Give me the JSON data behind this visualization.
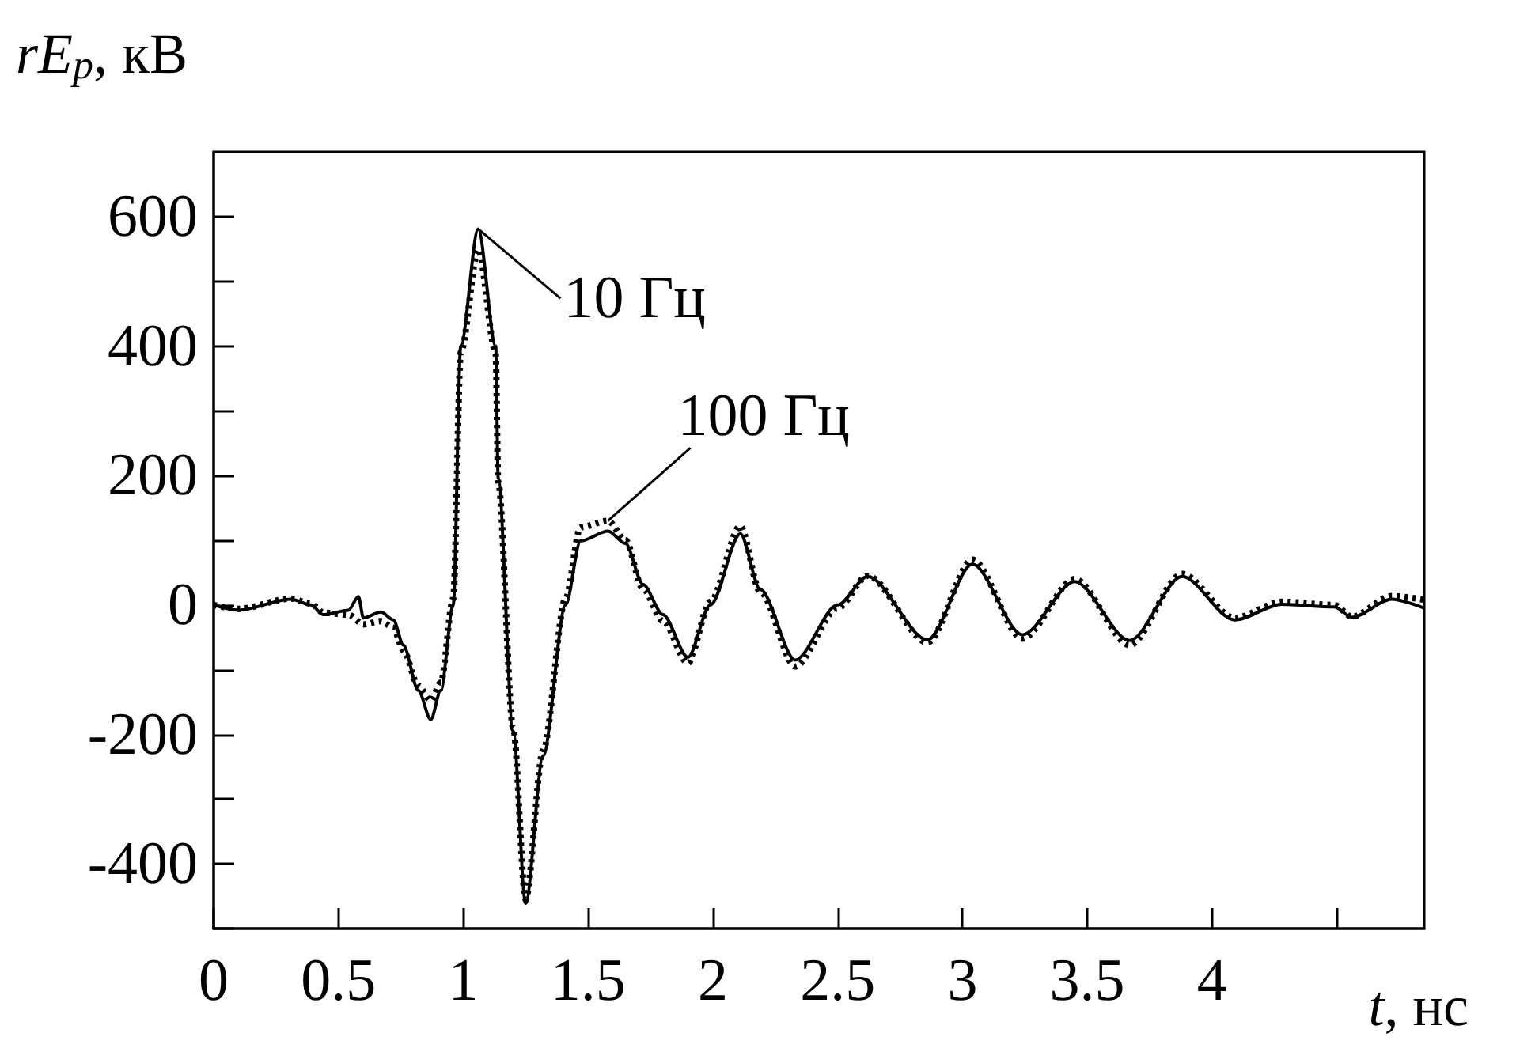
{
  "chart_data": {
    "type": "line",
    "xlabel": "t, нс",
    "ylabel": "rE$_{p}$, кВ",
    "xlim": [
      0,
      4.85
    ],
    "ylim": [
      -500,
      700
    ],
    "xticks": [
      0,
      0.5,
      1,
      1.5,
      2,
      2.5,
      3,
      3.5,
      4,
      {
        "value": 4.5,
        "label": null
      }
    ],
    "yticks": [
      {
        "value": -500,
        "label": null
      },
      -400,
      {
        "value": -300,
        "label": null
      },
      -200,
      {
        "value": -100,
        "label": null
      },
      0,
      {
        "value": 100,
        "label": null
      },
      200,
      {
        "value": 300,
        "label": null
      },
      400,
      {
        "value": 500,
        "label": null
      },
      600
    ],
    "grid": false,
    "marker": "none",
    "series": [
      {
        "color": "#000000",
        "line_style": "solid",
        "x": [
          0,
          0.1,
          0.31,
          0.39,
          0.44,
          0.54,
          0.58,
          0.6,
          0.67,
          0.72,
          0.76,
          0.82,
          0.87,
          0.91,
          0.96,
          0.99,
          1.06,
          1.13,
          1.14,
          1.2,
          1.25,
          1.32,
          1.41,
          1.47,
          1.58,
          1.65,
          1.72,
          1.8,
          1.9,
          1.99,
          2.11,
          2.19,
          2.33,
          2.5,
          2.62,
          2.86,
          3.04,
          3.24,
          3.45,
          3.67,
          3.88,
          4.09,
          4.28,
          4.49,
          4.56,
          4.72,
          4.85
        ],
        "values": [
          0,
          -8,
          9,
          0,
          -15,
          -8,
          13,
          -20,
          -11,
          -23,
          -62,
          -132,
          -177,
          -132,
          0,
          400,
          581,
          400,
          196,
          -195,
          -461,
          -233,
          0,
          99,
          114,
          95,
          32,
          -15,
          -81,
          0,
          110,
          24,
          -85,
          0,
          44,
          -54,
          63,
          -46,
          36,
          -55,
          44,
          -23,
          1,
          -3,
          -19,
          9,
          -5
        ]
      },
      {
        "color": "#000000",
        "line_style": "dotted",
        "x": [
          0,
          0.1,
          0.31,
          0.39,
          0.44,
          0.54,
          0.6,
          0.67,
          0.72,
          0.76,
          0.82,
          0.87,
          0.91,
          0.96,
          0.99,
          1.06,
          1.13,
          1.14,
          1.2,
          1.25,
          1.32,
          1.41,
          1.47,
          1.58,
          1.65,
          1.72,
          1.8,
          1.9,
          1.99,
          2.11,
          2.19,
          2.33,
          2.5,
          2.62,
          2.86,
          3.04,
          3.24,
          3.45,
          3.67,
          3.88,
          4.09,
          4.28,
          4.49,
          4.56,
          4.72,
          4.85
        ],
        "values": [
          0,
          -6,
          10,
          2,
          -12,
          -15,
          -30,
          -25,
          -35,
          -70,
          -125,
          -148,
          -120,
          10,
          390,
          549,
          390,
          190,
          -190,
          -455,
          -225,
          10,
          120,
          130,
          100,
          25,
          -25,
          -90,
          5,
          122,
          20,
          -95,
          -5,
          45,
          -58,
          70,
          -52,
          40,
          -62,
          48,
          -20,
          5,
          0,
          -18,
          14,
          8
        ]
      }
    ],
    "annotations": [
      {
        "text": "10 Гц",
        "x": 1.06,
        "y": 581
      },
      {
        "text": "100 Гц",
        "x": 1.58,
        "y": 130
      }
    ]
  }
}
